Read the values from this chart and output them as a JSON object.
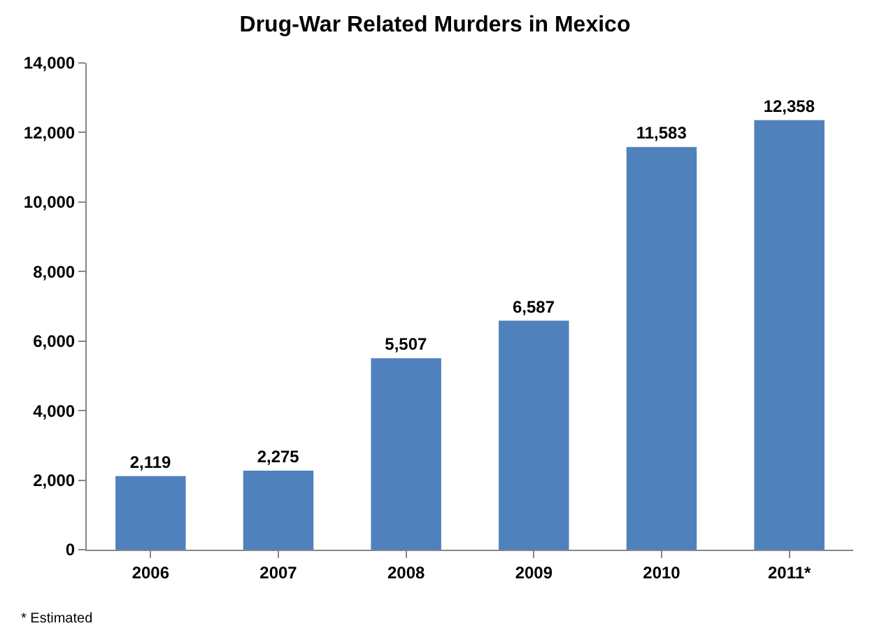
{
  "chart_data": {
    "type": "bar",
    "title": "Drug-War Related Murders in Mexico",
    "categories": [
      "2006",
      "2007",
      "2008",
      "2009",
      "2010",
      "2011*"
    ],
    "values": [
      2119,
      2275,
      5507,
      6587,
      11583,
      12358
    ],
    "color": "#4f81bd",
    "ylim": [
      0,
      14000
    ],
    "yticks": [
      {
        "value": 0,
        "label": "0"
      },
      {
        "value": 2000,
        "label": "2,000"
      },
      {
        "value": 4000,
        "label": "4,000"
      },
      {
        "value": 6000,
        "label": "6,000"
      },
      {
        "value": 8000,
        "label": "8,000"
      },
      {
        "value": 10000,
        "label": "10,000"
      },
      {
        "value": 12000,
        "label": "12,000"
      },
      {
        "value": 14000,
        "label": "14,000"
      }
    ],
    "value_labels": [
      "2,119",
      "2,275",
      "5,507",
      "6,587",
      "11,583",
      "12,358"
    ],
    "annotations": [
      "* Estimated"
    ]
  }
}
